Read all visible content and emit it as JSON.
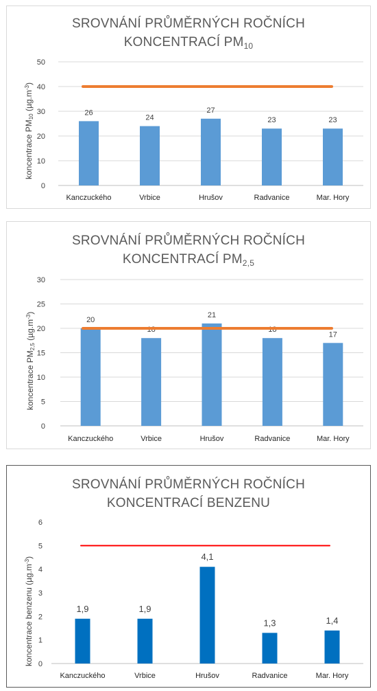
{
  "charts": [
    {
      "title_line1": "SROVNÁNÍ PRŮMĚRNÝCH ROČNÍCH",
      "title_line2_main": "KONCENTRACÍ PM",
      "title_line2_sub": "10",
      "ylabel_main": "koncentrace PM",
      "ylabel_sub": "10",
      "ylabel_unit": " (µg.m",
      "ylabel_sup": "-3",
      "ylabel_end": ")"
    },
    {
      "title_line1": "SROVNÁNÍ PRŮMĚRNÝCH ROČNÍCH",
      "title_line2_main": "KONCENTRACÍ PM",
      "title_line2_sub": "2,5",
      "ylabel_main": "koncentrace PM",
      "ylabel_sub": "2,5",
      "ylabel_unit": " (µg.m",
      "ylabel_sup": "-3",
      "ylabel_end": ")"
    },
    {
      "title_line1": "SROVNÁNÍ PRŮMĚRNÝCH ROČNÍCH",
      "title_line2_main": "KONCENTRACÍ BENZENU",
      "title_line2_sub": "",
      "ylabel_main": "koncentrace benzenu (µg.m",
      "ylabel_sub": "",
      "ylabel_unit": "",
      "ylabel_sup": "-3",
      "ylabel_end": ")"
    }
  ],
  "chart_data": [
    {
      "type": "bar",
      "title": "SROVNÁNÍ PRŮMĚRNÝCH ROČNÍCH KONCENTRACÍ PM10",
      "xlabel": "",
      "ylabel": "koncentrace PM10 (µg.m-3)",
      "categories": [
        "Kanczuckého",
        "Vrbice",
        "Hrušov",
        "Radvanice",
        "Mar. Hory"
      ],
      "values": [
        26,
        24,
        27,
        23,
        23
      ],
      "value_labels": [
        "26",
        "24",
        "27",
        "23",
        "23"
      ],
      "reference_line": 40,
      "ylim": [
        0,
        50
      ],
      "yticks": [
        0,
        10,
        20,
        30,
        40,
        50
      ],
      "ytick_labels": [
        "0",
        "10",
        "20",
        "30",
        "40",
        "50"
      ],
      "grid": true,
      "legend": "none",
      "bar_color": "#5B9BD5",
      "line_color": "#ED7D31"
    },
    {
      "type": "bar",
      "title": "SROVNÁNÍ PRŮMĚRNÝCH ROČNÍCH KONCENTRACÍ PM2,5",
      "xlabel": "",
      "ylabel": "koncentrace PM2,5 (µg.m-3)",
      "categories": [
        "Kanczuckého",
        "Vrbice",
        "Hrušov",
        "Radvanice",
        "Mar. Hory"
      ],
      "values": [
        20,
        18,
        21,
        18,
        17
      ],
      "value_labels": [
        "20",
        "18",
        "21",
        "18",
        "17"
      ],
      "reference_line": 20,
      "ylim": [
        0,
        30
      ],
      "yticks": [
        0,
        5,
        10,
        15,
        20,
        25,
        30
      ],
      "ytick_labels": [
        "0",
        "5",
        "10",
        "15",
        "20",
        "25",
        "30"
      ],
      "grid": true,
      "legend": "none",
      "bar_color": "#5B9BD5",
      "line_color": "#ED7D31"
    },
    {
      "type": "bar",
      "title": "SROVNÁNÍ PRŮMĚRNÝCH ROČNÍCH KONCENTRACÍ BENZENU",
      "xlabel": "",
      "ylabel": "koncentrace benzenu (µg.m-3)",
      "categories": [
        "Kanczuckého",
        "Vrbice",
        "Hrušov",
        "Radvanice",
        "Mar. Hory"
      ],
      "values": [
        1.9,
        1.9,
        4.1,
        1.3,
        1.4
      ],
      "value_labels": [
        "1,9",
        "1,9",
        "4,1",
        "1,3",
        "1,4"
      ],
      "reference_line": 5,
      "ylim": [
        0,
        6
      ],
      "yticks": [
        0,
        1,
        2,
        3,
        4,
        5,
        6
      ],
      "ytick_labels": [
        "0",
        "1",
        "2",
        "3",
        "4",
        "5",
        "6"
      ],
      "grid": false,
      "legend": "none",
      "bar_color": "#0070C0",
      "line_color": "#FF0000"
    }
  ]
}
